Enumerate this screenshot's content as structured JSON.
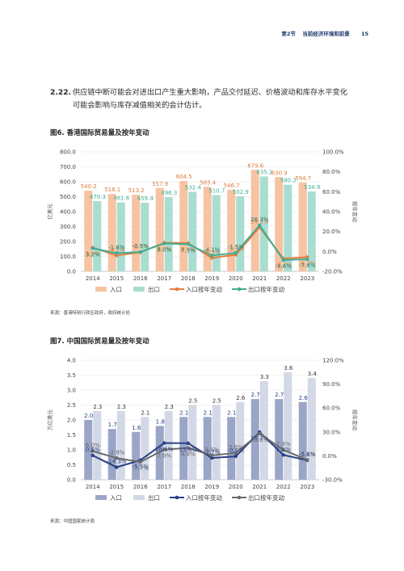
{
  "header": {
    "section": "第2节",
    "section_title": "当前经济环境和前景",
    "page_number": "15"
  },
  "paragraph": {
    "number": "2.22.",
    "line1": "供应链中断可能会对进出口产生重大影响，产品交付延迟、价格波动和库存水平变化",
    "line2": "可能会影响与库存减值相关的会计估计。"
  },
  "figures": [
    {
      "title": "图6. 香港国际贸易量及按年变动",
      "source": "来源：香港特别行政区政府，政府统计处"
    },
    {
      "title": "图7. 中国国际贸易量及按年变动",
      "source": "来源：中国国家统计局"
    }
  ],
  "chart_data": [
    {
      "type": "bar",
      "title": "图6. 香港国际贸易量及按年变动",
      "ylabel": "亿美元",
      "y2label": "按年变动",
      "ylim": [
        0,
        800
      ],
      "y2lim": [
        -20,
        100
      ],
      "y_ticks": [
        "0.0",
        "100.0",
        "200.0",
        "300.0",
        "400.0",
        "500.0",
        "600.0",
        "700.0",
        "800.0"
      ],
      "y2_ticks": [
        "-20.0%",
        "0.0%",
        "20.0%",
        "40.0%",
        "60.0%",
        "80.0%",
        "100.0%"
      ],
      "categories": [
        "2014",
        "2015",
        "2016",
        "2017",
        "2018",
        "2019",
        "2020",
        "2021",
        "2022",
        "2023"
      ],
      "series": [
        {
          "name": "入口",
          "kind": "bar",
          "color": "#f6c3a3",
          "values": [
            540.2,
            518.1,
            513.2,
            557.9,
            604.5,
            565.4,
            546.7,
            679.6,
            630.9,
            594.7
          ],
          "labels": [
            "540.2",
            "518.1",
            "513.2",
            "557.9",
            "604.5",
            "565.4",
            "546.7",
            "679.6",
            "630.9",
            "594.7"
          ]
        },
        {
          "name": "出口",
          "kind": "bar",
          "color": "#a9ddd1",
          "values": [
            470.3,
            461.6,
            459.4,
            496.3,
            532.4,
            510.7,
            502.9,
            635.2,
            580.2,
            534.9
          ],
          "labels": [
            "470.3",
            "461.6",
            "459.4",
            "496.3",
            "532.4",
            "510.7",
            "502.9",
            "635.2",
            "580.2",
            "534.9"
          ]
        },
        {
          "name": "入口按年变动",
          "kind": "line",
          "color": "#e87d3e",
          "values": [
            3.9,
            -4.1,
            -0.9,
            8.7,
            8.4,
            -6.5,
            -3.3,
            24.3,
            -7.2,
            -5.7
          ],
          "labels": [
            "3.9%",
            "-4.1%",
            "-0.9%",
            "8.7%",
            "8.4%",
            "-6.5%",
            "-3.3%",
            "24.3%",
            "-7.2%",
            "-5.7%"
          ]
        },
        {
          "name": "出口按年变动",
          "kind": "line",
          "color": "#3fae95",
          "values": [
            3.2,
            -1.8,
            -0.5,
            8.0,
            7.3,
            -4.1,
            -1.5,
            26.3,
            -8.6,
            -7.8
          ],
          "labels": [
            "3.2%",
            "-1.8%",
            "-0.5%",
            "8.0%",
            "7.3%",
            "-4.1%",
            "-1.5%",
            "26.3%",
            "-8.6%",
            "-7.8%"
          ]
        }
      ]
    },
    {
      "type": "bar",
      "title": "图7. 中国国际贸易量及按年变动",
      "ylabel": "万亿美元",
      "y2label": "按年变动",
      "ylim": [
        0,
        4
      ],
      "y2lim": [
        -30,
        120
      ],
      "y_ticks": [
        "0.0",
        "0.5",
        "1.0",
        "1.5",
        "2.0",
        "2.5",
        "3.0",
        "3.5",
        "4.0"
      ],
      "y2_ticks": [
        "-30.0%",
        "0.0%",
        "30.0%",
        "60.0%",
        "90.0%",
        "120.0%"
      ],
      "categories": [
        "2014",
        "2015",
        "2016",
        "2017",
        "2018",
        "2019",
        "2020",
        "2021",
        "2022",
        "2023"
      ],
      "series": [
        {
          "name": "入口",
          "kind": "bar",
          "color": "#9aa5c8",
          "values": [
            2.0,
            1.7,
            1.6,
            1.8,
            2.1,
            2.1,
            2.1,
            2.7,
            2.7,
            2.6
          ],
          "labels": [
            "2.0",
            "1.7",
            "1.6",
            "1.8",
            "2.1",
            "2.1",
            "2.1",
            "2.7",
            "2.7",
            "2.6"
          ]
        },
        {
          "name": "出口",
          "kind": "bar",
          "color": "#d3d8e6",
          "values": [
            2.3,
            2.3,
            2.1,
            2.3,
            2.5,
            2.5,
            2.6,
            3.3,
            3.6,
            3.4
          ],
          "labels": [
            "2.3",
            "2.3",
            "2.1",
            "2.3",
            "2.5",
            "2.5",
            "2.6",
            "3.3",
            "3.6",
            "3.4"
          ]
        },
        {
          "name": "入口按年变动",
          "kind": "line",
          "color": "#2a3f86",
          "values": [
            0.5,
            -14.3,
            -5.5,
            16.1,
            15.8,
            -2.7,
            -0.6,
            29.7,
            1.1,
            -5.6
          ],
          "labels": [
            "0.5%",
            "-14.3%",
            "-5.5%",
            "16.1%",
            "15.8%",
            "-2.7%",
            "-0.6%",
            "29.7%",
            "1.1%",
            "-5.6%"
          ]
        },
        {
          "name": "出口按年变动",
          "kind": "line",
          "color": "#6b6b6b",
          "values": [
            6.0,
            -2.9,
            -7.7,
            7.9,
            9.9,
            0.5,
            3.6,
            28.0,
            7.4,
            -5.1
          ],
          "labels": [
            "6.0%",
            "-2.9%",
            "-7.7%",
            "7.9%",
            "9.9%",
            "0.5%",
            "3.6%",
            "28.0%",
            "7.4%",
            "-5.1%"
          ]
        }
      ]
    }
  ]
}
